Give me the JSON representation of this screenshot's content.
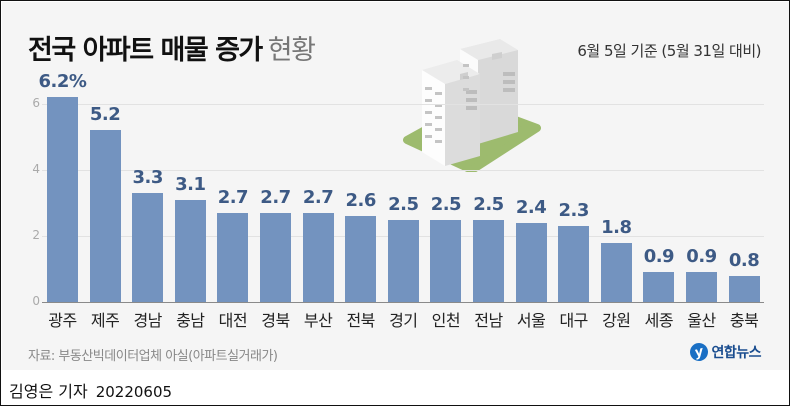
{
  "header": {
    "title_bold": "전국 아파트 매물 증가",
    "title_light": "현황",
    "subtitle": "6월 5일 기준 (5월 31일 대비)"
  },
  "footer": {
    "source": "자료: 부동산빅데이터업체 아실(아파트실거래가)",
    "logo_text": "연합뉴스",
    "logo_mark": "y",
    "reporter": "김영은 기자",
    "date": "20220605"
  },
  "colors": {
    "bar": "#7393bf",
    "value_label": "#3d5a85",
    "background": "#f5f5f5",
    "ground": "#9dbb6e"
  },
  "chart_data": {
    "type": "bar",
    "title": "전국 아파트 매물 증가 현황",
    "subtitle": "6월 5일 기준 (5월 31일 대비)",
    "xlabel": "",
    "ylabel": "",
    "unit": "%",
    "ylim": [
      0,
      6.4
    ],
    "yticks": [
      0,
      2,
      4,
      6
    ],
    "grid": true,
    "legend": null,
    "categories": [
      "광주",
      "제주",
      "경남",
      "충남",
      "대전",
      "경북",
      "부산",
      "전북",
      "경기",
      "인천",
      "전남",
      "서울",
      "대구",
      "강원",
      "세종",
      "울산",
      "충북"
    ],
    "values": [
      6.2,
      5.2,
      3.3,
      3.1,
      2.7,
      2.7,
      2.7,
      2.6,
      2.5,
      2.5,
      2.5,
      2.4,
      2.3,
      1.8,
      0.9,
      0.9,
      0.8
    ],
    "value_labels": [
      "6.2%",
      "5.2",
      "3.3",
      "3.1",
      "2.7",
      "2.7",
      "2.7",
      "2.6",
      "2.5",
      "2.5",
      "2.5",
      "2.4",
      "2.3",
      "1.8",
      "0.9",
      "0.9",
      "0.8"
    ],
    "source": "자료: 부동산빅데이터업체 아실(아파트실거래가)"
  }
}
